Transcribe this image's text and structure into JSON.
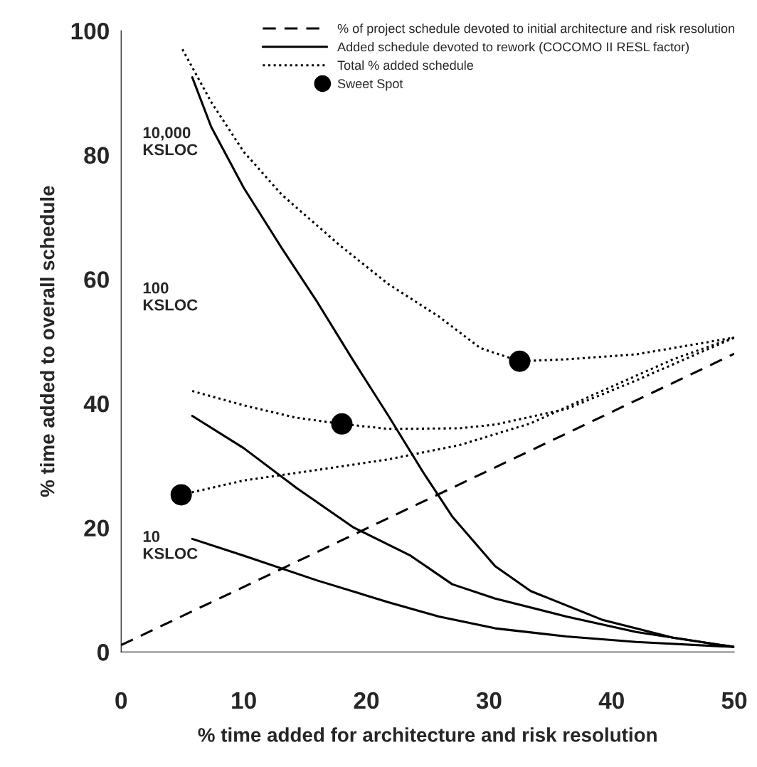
{
  "chart_data": {
    "type": "line",
    "xlabel": "% time added for architecture and risk resolution",
    "ylabel": "% time added to overall schedule",
    "xlim": [
      0,
      50
    ],
    "xticks": [
      0,
      10,
      20,
      30,
      40,
      50
    ],
    "ylim": [
      0,
      100
    ],
    "yticks": [
      0,
      20,
      40,
      60,
      80,
      100
    ],
    "grid": false,
    "legend": "top right",
    "series": [
      {
        "name": "% of project schedule devoted to initial architecture and risk resolution",
        "color": "#000000",
        "line_style": "dashed",
        "x": [
          0,
          50
        ],
        "values": [
          1.1,
          48
        ]
      },
      {
        "name": "Added schedule devoted to rework (COCOMO II RESL factor)",
        "color": "#000000",
        "line_style": "solid",
        "x": [
          5.8,
          7.35,
          10,
          13.1,
          16,
          18.9,
          21.8,
          24.7,
          27,
          30.5,
          33.4,
          39.2,
          45,
          50
        ],
        "values": [
          92.5,
          84.5,
          74.7,
          65,
          56.3,
          47,
          38,
          28.7,
          21.8,
          13.8,
          9.8,
          5.2,
          2.3,
          0.8
        ]
      },
      {
        "color": "#000000",
        "line_style": "solid",
        "x": [
          5.8,
          10,
          14.3,
          18.9,
          23.6,
          27,
          30.5,
          36.3,
          42,
          50
        ],
        "values": [
          38,
          32.8,
          26.4,
          20.1,
          15.5,
          10.9,
          8.6,
          5.7,
          3.2,
          0.8
        ]
      },
      {
        "color": "#000000",
        "line_style": "solid",
        "x": [
          5.8,
          10,
          16,
          21.8,
          25.9,
          30.5,
          36.3,
          42,
          50
        ],
        "values": [
          18.2,
          15.5,
          11.5,
          8,
          5.7,
          3.8,
          2.5,
          1.6,
          0.8
        ]
      },
      {
        "name": "Total % added schedule",
        "color": "#000000",
        "line_style": "dotted",
        "x": [
          5,
          7.35,
          10,
          13.1,
          17.8,
          21.8,
          25.9,
          29.3,
          32.5,
          36.3,
          42,
          50
        ],
        "values": [
          97,
          88.5,
          80.5,
          73.6,
          65.5,
          59.2,
          54,
          48.9,
          46.8,
          47.1,
          47.9,
          50.6
        ]
      },
      {
        "color": "#000000",
        "line_style": "dotted",
        "x": [
          5.8,
          10,
          14.3,
          18,
          21.8,
          27.6,
          30.5,
          36.3,
          42,
          50
        ],
        "values": [
          42,
          39.7,
          37.7,
          36.7,
          35.9,
          36,
          36.6,
          39.1,
          43.7,
          50.6
        ]
      },
      {
        "color": "#000000",
        "line_style": "dotted",
        "x": [
          4.9,
          10,
          16,
          21.8,
          27.6,
          33.4,
          39.2,
          45,
          50
        ],
        "values": [
          25.3,
          27.6,
          29.3,
          31,
          33.3,
          36.8,
          42,
          47.1,
          50.6
        ]
      },
      {
        "name": "Sweet Spot",
        "type": "scatter",
        "color": "#000000",
        "marker": "circle",
        "x": [
          4.9,
          18,
          32.5
        ],
        "values": [
          25.3,
          36.7,
          46.8
        ]
      }
    ],
    "annotations": [
      "10,000\nKSLOC",
      "100\nKSLOC",
      "10\nKSLOC"
    ]
  }
}
